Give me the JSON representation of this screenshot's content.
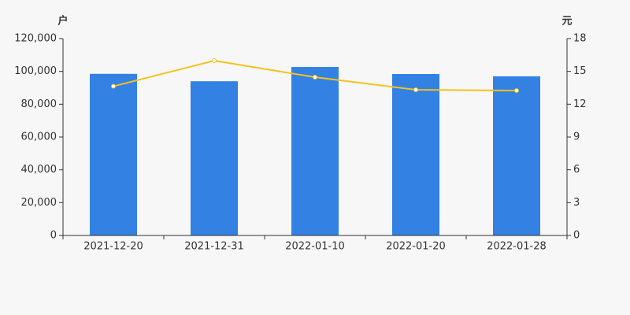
{
  "chart_data": {
    "type": "bar-line",
    "y_label": "户",
    "y2_label": "元",
    "categories": [
      "2021-12-20",
      "2021-12-31",
      "2022-01-10",
      "2022-01-20",
      "2022-01-28"
    ],
    "series": [
      {
        "type": "bar",
        "color": "#3381e3",
        "values": [
          98500,
          94000,
          102700,
          98400,
          97000
        ]
      },
      {
        "type": "line",
        "axis": "y2",
        "color": "#f5c21b",
        "values": [
          13.64,
          15.98,
          14.47,
          13.32,
          13.25
        ]
      }
    ],
    "ylim": [
      0,
      120000
    ],
    "yticks": [
      0,
      {
        "value": 20000,
        "label": "20,000"
      },
      {
        "value": 40000,
        "label": "40,000"
      },
      {
        "value": 60000,
        "label": "60,000"
      },
      {
        "value": 80000,
        "label": "80,000"
      },
      {
        "value": 100000,
        "label": "100,000"
      },
      {
        "value": 120000,
        "label": "120,000"
      }
    ],
    "y2lim": [
      0,
      18
    ],
    "y2ticks": [
      0,
      3,
      6,
      9,
      12,
      15,
      18
    ]
  }
}
